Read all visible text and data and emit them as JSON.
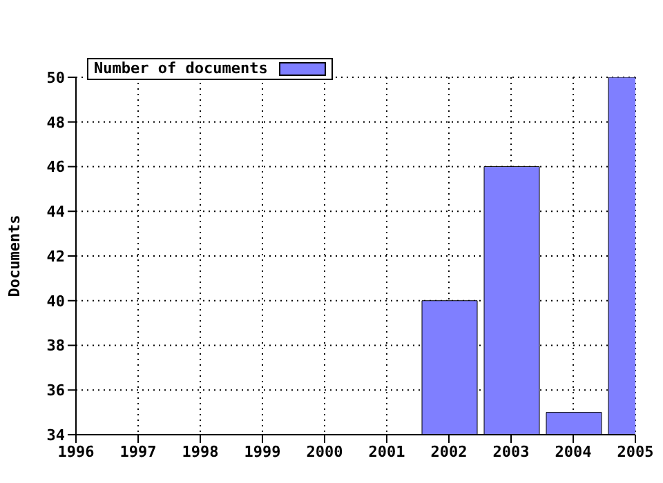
{
  "chart_data": {
    "type": "bar",
    "ylabel": "Documents",
    "x": [
      2002,
      2003,
      2004,
      2005
    ],
    "series": [
      {
        "name": "Number of documents",
        "color": "#7f7fff",
        "values": [
          40,
          46,
          35,
          50
        ]
      }
    ],
    "xlim": [
      1996,
      2005
    ],
    "xticks": [
      1996,
      1997,
      1998,
      1999,
      2000,
      2001,
      2002,
      2003,
      2004,
      2005
    ],
    "ylim": [
      34,
      50
    ],
    "yticks": [
      34,
      36,
      38,
      40,
      42,
      44,
      46,
      48,
      50
    ],
    "grid": true,
    "legend": "top left"
  }
}
